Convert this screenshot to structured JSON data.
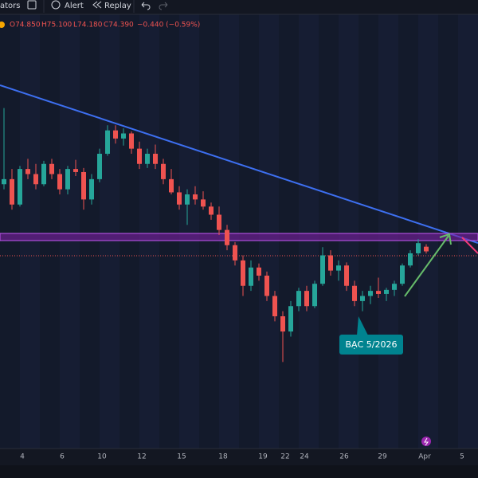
{
  "toolbar": [
    "ators",
    "Alert",
    "Replay"
  ],
  "chart_data": {
    "type": "candlestick",
    "legend": [
      "O74.850",
      "H75.100",
      "L74.180",
      "C74.390",
      "−0.440 (−0.59%)"
    ],
    "xtick_labels": [
      "4",
      "6",
      "10",
      "12",
      "15",
      "18",
      "19",
      "22",
      "24",
      "26",
      "29",
      "Apr",
      "5"
    ],
    "annotation": "BẠC 5/2026",
    "up_color": "#26a69a",
    "down_color": "#ef5350",
    "ylim": [
      56,
      96
    ],
    "candles": [
      [
        81.0,
        88.5,
        80.5,
        81.5
      ],
      [
        81.5,
        82.5,
        78.5,
        79.0
      ],
      [
        79.0,
        82.8,
        78.8,
        82.5
      ],
      [
        82.5,
        83.5,
        81.5,
        82.0
      ],
      [
        82.0,
        83.0,
        80.5,
        81.0
      ],
      [
        81.0,
        83.3,
        80.8,
        83.0
      ],
      [
        83.0,
        83.5,
        81.5,
        82.0
      ],
      [
        82.0,
        82.5,
        80.0,
        80.5
      ],
      [
        80.5,
        82.8,
        80.0,
        82.5
      ],
      [
        82.5,
        83.4,
        81.8,
        82.2
      ],
      [
        82.2,
        82.6,
        78.5,
        79.5
      ],
      [
        79.5,
        82.0,
        79.0,
        81.5
      ],
      [
        81.5,
        84.5,
        81.2,
        84.0
      ],
      [
        84.0,
        86.8,
        83.8,
        86.3
      ],
      [
        86.3,
        86.8,
        85.0,
        85.5
      ],
      [
        85.5,
        86.5,
        84.8,
        86.0
      ],
      [
        86.0,
        86.2,
        84.0,
        84.5
      ],
      [
        84.5,
        85.2,
        82.5,
        83.0
      ],
      [
        83.0,
        84.5,
        82.6,
        84.0
      ],
      [
        84.0,
        84.9,
        82.5,
        83.0
      ],
      [
        83.0,
        83.5,
        81.0,
        81.5
      ],
      [
        81.5,
        82.5,
        80.0,
        80.2
      ],
      [
        80.2,
        80.8,
        78.5,
        79.0
      ],
      [
        79.0,
        80.5,
        77.0,
        80.0
      ],
      [
        80.0,
        80.8,
        79.0,
        79.5
      ],
      [
        79.5,
        80.3,
        78.5,
        78.8
      ],
      [
        78.8,
        79.2,
        77.5,
        78.0
      ],
      [
        78.0,
        78.8,
        76.0,
        76.5
      ],
      [
        76.5,
        77.0,
        74.5,
        75.0
      ],
      [
        75.0,
        75.3,
        73.0,
        73.5
      ],
      [
        73.5,
        74.0,
        70.0,
        71.0
      ],
      [
        71.0,
        73.5,
        70.5,
        72.8
      ],
      [
        72.8,
        73.2,
        71.5,
        72.0
      ],
      [
        72.0,
        72.4,
        69.5,
        70.0
      ],
      [
        70.0,
        70.5,
        67.5,
        68.0
      ],
      [
        68.0,
        68.5,
        63.5,
        66.5
      ],
      [
        66.5,
        69.5,
        66.0,
        69.0
      ],
      [
        69.0,
        70.8,
        68.5,
        70.5
      ],
      [
        70.5,
        71.0,
        68.5,
        69.0
      ],
      [
        69.0,
        71.5,
        68.8,
        71.2
      ],
      [
        71.2,
        74.8,
        71.0,
        74.0
      ],
      [
        74.0,
        74.5,
        72.0,
        72.5
      ],
      [
        72.5,
        73.5,
        71.5,
        73.0
      ],
      [
        73.0,
        73.3,
        70.5,
        71.0
      ],
      [
        71.0,
        71.5,
        69.0,
        69.5
      ],
      [
        69.5,
        70.5,
        68.5,
        70.0
      ],
      [
        70.0,
        71.0,
        69.2,
        70.5
      ],
      [
        70.5,
        71.8,
        69.8,
        70.2
      ],
      [
        70.2,
        70.8,
        69.5,
        70.6
      ],
      [
        70.6,
        71.5,
        70.0,
        71.2
      ],
      [
        71.2,
        73.2,
        71.0,
        73.0
      ],
      [
        73.0,
        74.5,
        72.8,
        74.2
      ],
      [
        74.2,
        75.6,
        74.0,
        75.2
      ],
      [
        74.85,
        75.1,
        74.18,
        74.39
      ]
    ]
  }
}
